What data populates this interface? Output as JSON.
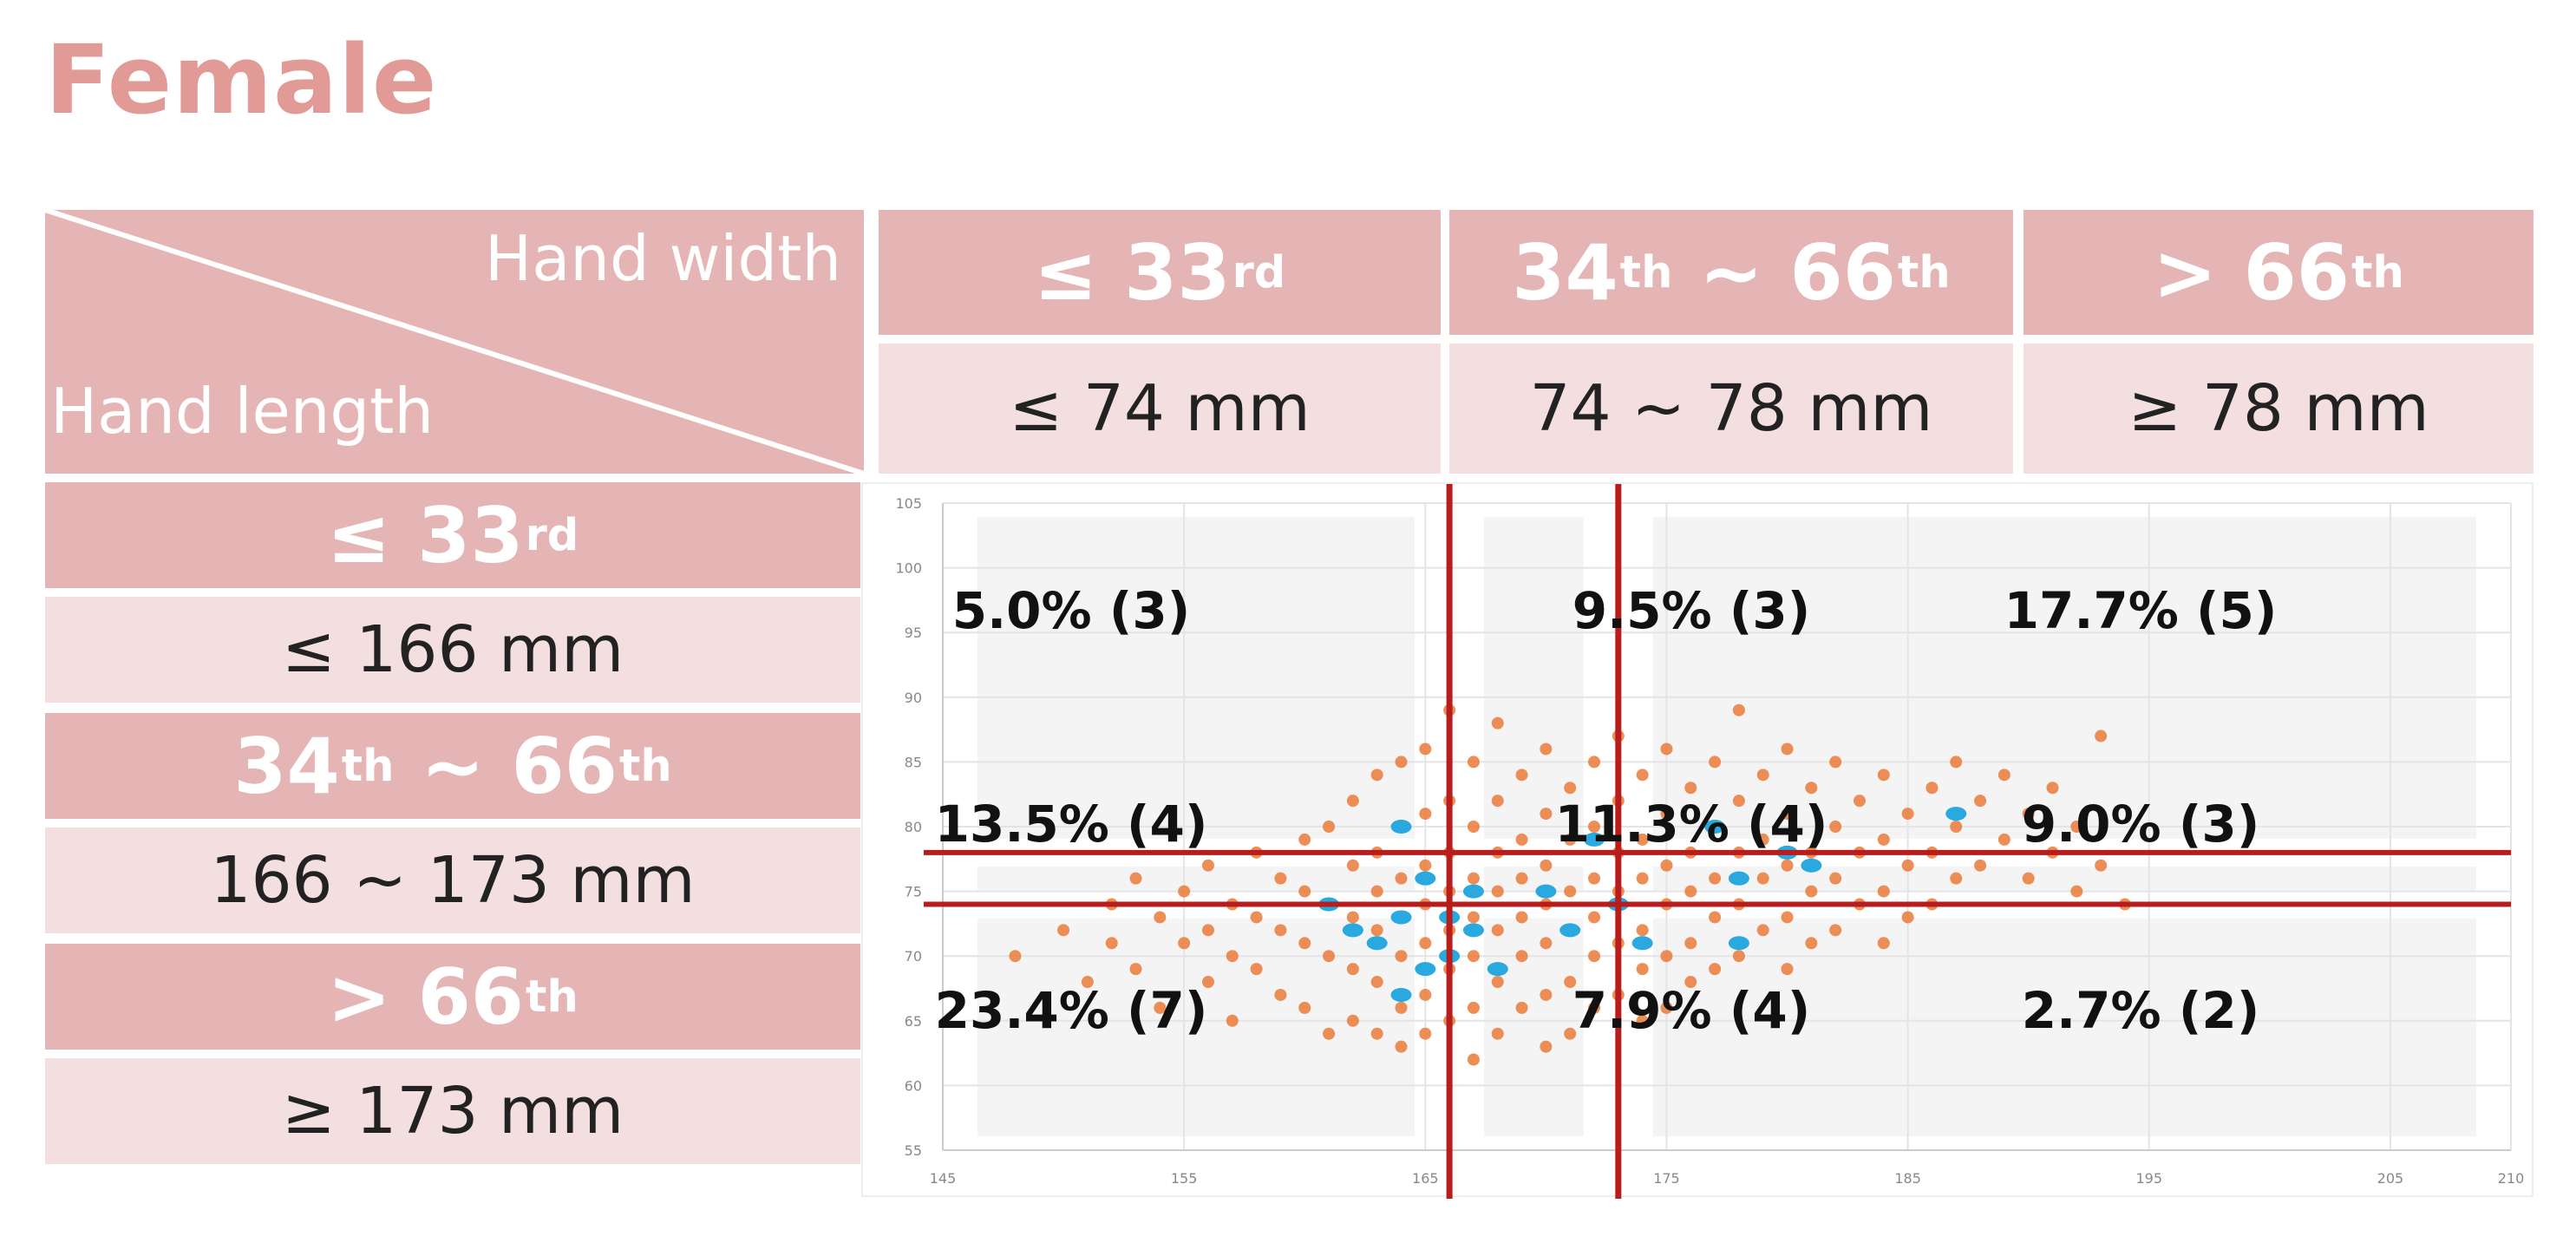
{
  "title": "Female",
  "table": {
    "corner_top": "Hand width",
    "corner_bottom": "Hand length",
    "width_columns": [
      {
        "percentile": {
          "base": "≤ 33",
          "sup": "rd"
        },
        "range": "≤ 74 mm"
      },
      {
        "percentile": {
          "base": "34",
          "sup": "th",
          "base2": " ~ 66",
          "sup2": "th"
        },
        "range": "74 ~ 78 mm"
      },
      {
        "percentile": {
          "base": "> 66",
          "sup": "th"
        },
        "range": "≥ 78 mm"
      }
    ],
    "length_rows": [
      {
        "percentile": {
          "base": "≤ 33",
          "sup": "rd"
        },
        "range": "≤ 166 mm"
      },
      {
        "percentile": {
          "base": "34",
          "sup": "th",
          "base2": " ~ 66",
          "sup2": "th"
        },
        "range": "166 ~ 173 mm"
      },
      {
        "percentile": {
          "base": "> 66",
          "sup": "th"
        },
        "range": "≥ 173 mm"
      }
    ]
  },
  "cell_annotations": [
    [
      "5.0% (3)",
      "9.5% (3)",
      "17.7% (5)"
    ],
    [
      "13.5% (4)",
      "11.3% (4)",
      "9.0% (3)"
    ],
    [
      "23.4% (7)",
      "7.9% (4)",
      "2.7% (2)"
    ]
  ],
  "chart_data": {
    "type": "scatter",
    "title": "",
    "xlabel": "",
    "ylabel": "",
    "xlim": [
      145,
      210
    ],
    "ylim": [
      55,
      105
    ],
    "x_ticks": [
      145,
      155,
      165,
      175,
      185,
      195,
      205,
      210
    ],
    "y_ticks": [
      55,
      60,
      65,
      70,
      75,
      80,
      85,
      90,
      95,
      100,
      105
    ],
    "grid": true,
    "colors": {
      "orange_points": "#ea7a3a",
      "blue_points": "#2aa8e0",
      "threshold_lines": "#b81c1c",
      "shade": "#f4f4f4"
    },
    "vertical_thresholds": [
      166,
      173
    ],
    "horizontal_thresholds": [
      74,
      78
    ],
    "series": [
      {
        "values": [
          [
            148,
            70
          ],
          [
            150,
            72
          ],
          [
            151,
            68
          ],
          [
            152,
            74
          ],
          [
            152,
            71
          ],
          [
            153,
            76
          ],
          [
            153,
            69
          ],
          [
            154,
            73
          ],
          [
            154,
            66
          ],
          [
            155,
            75
          ],
          [
            155,
            71
          ],
          [
            156,
            77
          ],
          [
            156,
            72
          ],
          [
            156,
            68
          ],
          [
            157,
            74
          ],
          [
            157,
            70
          ],
          [
            157,
            65
          ],
          [
            158,
            78
          ],
          [
            158,
            73
          ],
          [
            158,
            69
          ],
          [
            159,
            76
          ],
          [
            159,
            72
          ],
          [
            159,
            67
          ],
          [
            160,
            79
          ],
          [
            160,
            75
          ],
          [
            160,
            71
          ],
          [
            160,
            66
          ],
          [
            161,
            80
          ],
          [
            161,
            74
          ],
          [
            161,
            70
          ],
          [
            161,
            64
          ],
          [
            162,
            82
          ],
          [
            162,
            77
          ],
          [
            162,
            73
          ],
          [
            162,
            69
          ],
          [
            162,
            65
          ],
          [
            163,
            84
          ],
          [
            163,
            78
          ],
          [
            163,
            75
          ],
          [
            163,
            72
          ],
          [
            163,
            68
          ],
          [
            163,
            64
          ],
          [
            164,
            85
          ],
          [
            164,
            80
          ],
          [
            164,
            76
          ],
          [
            164,
            73
          ],
          [
            164,
            70
          ],
          [
            164,
            66
          ],
          [
            164,
            63
          ],
          [
            165,
            86
          ],
          [
            165,
            81
          ],
          [
            165,
            77
          ],
          [
            165,
            74
          ],
          [
            165,
            71
          ],
          [
            165,
            67
          ],
          [
            165,
            64
          ],
          [
            166,
            89
          ],
          [
            166,
            82
          ],
          [
            166,
            78
          ],
          [
            166,
            75
          ],
          [
            166,
            72
          ],
          [
            166,
            69
          ],
          [
            166,
            65
          ],
          [
            167,
            85
          ],
          [
            167,
            80
          ],
          [
            167,
            76
          ],
          [
            167,
            73
          ],
          [
            167,
            70
          ],
          [
            167,
            66
          ],
          [
            167,
            62
          ],
          [
            168,
            88
          ],
          [
            168,
            82
          ],
          [
            168,
            78
          ],
          [
            168,
            75
          ],
          [
            168,
            72
          ],
          [
            168,
            68
          ],
          [
            168,
            64
          ],
          [
            169,
            84
          ],
          [
            169,
            79
          ],
          [
            169,
            76
          ],
          [
            169,
            73
          ],
          [
            169,
            70
          ],
          [
            169,
            66
          ],
          [
            170,
            86
          ],
          [
            170,
            81
          ],
          [
            170,
            77
          ],
          [
            170,
            74
          ],
          [
            170,
            71
          ],
          [
            170,
            67
          ],
          [
            170,
            63
          ],
          [
            171,
            83
          ],
          [
            171,
            79
          ],
          [
            171,
            75
          ],
          [
            171,
            72
          ],
          [
            171,
            68
          ],
          [
            171,
            64
          ],
          [
            172,
            85
          ],
          [
            172,
            80
          ],
          [
            172,
            76
          ],
          [
            172,
            73
          ],
          [
            172,
            70
          ],
          [
            172,
            66
          ],
          [
            173,
            87
          ],
          [
            173,
            82
          ],
          [
            173,
            78
          ],
          [
            173,
            75
          ],
          [
            173,
            71
          ],
          [
            173,
            67
          ],
          [
            174,
            84
          ],
          [
            174,
            79
          ],
          [
            174,
            76
          ],
          [
            174,
            72
          ],
          [
            174,
            69
          ],
          [
            174,
            65
          ],
          [
            175,
            86
          ],
          [
            175,
            81
          ],
          [
            175,
            77
          ],
          [
            175,
            74
          ],
          [
            175,
            70
          ],
          [
            175,
            66
          ],
          [
            176,
            83
          ],
          [
            176,
            78
          ],
          [
            176,
            75
          ],
          [
            176,
            71
          ],
          [
            176,
            68
          ],
          [
            177,
            85
          ],
          [
            177,
            80
          ],
          [
            177,
            76
          ],
          [
            177,
            73
          ],
          [
            177,
            69
          ],
          [
            178,
            89
          ],
          [
            178,
            82
          ],
          [
            178,
            78
          ],
          [
            178,
            74
          ],
          [
            178,
            70
          ],
          [
            179,
            84
          ],
          [
            179,
            79
          ],
          [
            179,
            76
          ],
          [
            179,
            72
          ],
          [
            180,
            86
          ],
          [
            180,
            81
          ],
          [
            180,
            77
          ],
          [
            180,
            73
          ],
          [
            180,
            69
          ],
          [
            181,
            83
          ],
          [
            181,
            78
          ],
          [
            181,
            75
          ],
          [
            181,
            71
          ],
          [
            182,
            85
          ],
          [
            182,
            80
          ],
          [
            182,
            76
          ],
          [
            182,
            72
          ],
          [
            183,
            82
          ],
          [
            183,
            78
          ],
          [
            183,
            74
          ],
          [
            184,
            84
          ],
          [
            184,
            79
          ],
          [
            184,
            75
          ],
          [
            184,
            71
          ],
          [
            185,
            81
          ],
          [
            185,
            77
          ],
          [
            185,
            73
          ],
          [
            186,
            83
          ],
          [
            186,
            78
          ],
          [
            186,
            74
          ],
          [
            187,
            85
          ],
          [
            187,
            80
          ],
          [
            187,
            76
          ],
          [
            188,
            82
          ],
          [
            188,
            77
          ],
          [
            189,
            84
          ],
          [
            189,
            79
          ],
          [
            190,
            76
          ],
          [
            190,
            81
          ],
          [
            191,
            83
          ],
          [
            191,
            78
          ],
          [
            192,
            80
          ],
          [
            192,
            75
          ],
          [
            193,
            87
          ],
          [
            193,
            77
          ],
          [
            194,
            74
          ]
        ]
      },
      {
        "values": [
          [
            161,
            74
          ],
          [
            162,
            72
          ],
          [
            163,
            71
          ],
          [
            164,
            73
          ],
          [
            164,
            80
          ],
          [
            164,
            67
          ],
          [
            165,
            69
          ],
          [
            165,
            76
          ],
          [
            166,
            73
          ],
          [
            166,
            70
          ],
          [
            167,
            75
          ],
          [
            167,
            72
          ],
          [
            168,
            69
          ],
          [
            170,
            75
          ],
          [
            171,
            72
          ],
          [
            172,
            79
          ],
          [
            173,
            74
          ],
          [
            174,
            71
          ],
          [
            177,
            80
          ],
          [
            178,
            76
          ],
          [
            178,
            71
          ],
          [
            180,
            78
          ],
          [
            181,
            77
          ],
          [
            187,
            81
          ]
        ]
      }
    ]
  }
}
